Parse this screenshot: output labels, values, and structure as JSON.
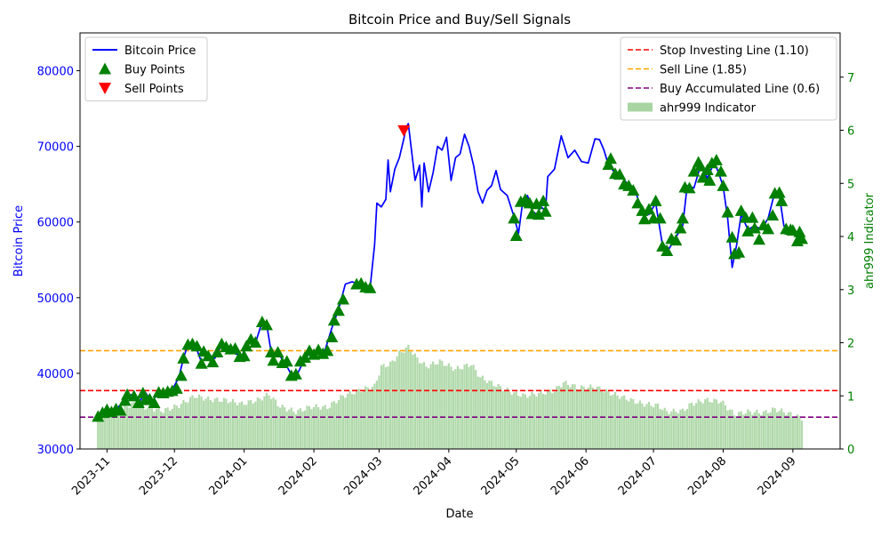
{
  "chart_data": {
    "type": "line",
    "title": "Bitcoin Price and Buy/Sell Signals",
    "xlabel": "Date",
    "ylabel_left": "Bitcoin Price",
    "ylabel_right": "ahr999 Indicator",
    "x_range": [
      "2023-10-20",
      "2024-09-22"
    ],
    "ylim_left": [
      30000,
      85000
    ],
    "ylim_right": [
      0,
      7.833
    ],
    "grid": false,
    "x_ticks": [
      "2023-11",
      "2023-12",
      "2024-01",
      "2024-02",
      "2024-03",
      "2024-04",
      "2024-05",
      "2024-06",
      "2024-07",
      "2024-08",
      "2024-09"
    ],
    "y_ticks_left": [
      "30000",
      "40000",
      "50000",
      "60000",
      "70000",
      "80000"
    ],
    "y_ticks_right": [
      "0",
      "1",
      "2",
      "3",
      "4",
      "5",
      "6",
      "7"
    ],
    "legend_left": [
      {
        "label": "Bitcoin Price",
        "kind": "line",
        "color": "#0000ff"
      },
      {
        "label": "Buy Points",
        "kind": "triangle-up",
        "color": "#008000"
      },
      {
        "label": "Sell Points",
        "kind": "triangle-down",
        "color": "#ff0000"
      }
    ],
    "legend_right": [
      {
        "label": "Stop Investing Line (1.10)",
        "kind": "dashed",
        "color": "#ff0000"
      },
      {
        "label": "Sell Line (1.85)",
        "kind": "dashed",
        "color": "#ffa500"
      },
      {
        "label": "Buy Accumulated Line (0.6)",
        "kind": "dashed",
        "color": "#800080"
      },
      {
        "label": "ahr999 Indicator",
        "kind": "bar",
        "color": "#a8d5a2"
      }
    ],
    "reference_lines": [
      {
        "name": "Stop Investing Line (1.10)",
        "value": 1.1,
        "color": "#ff0000"
      },
      {
        "name": "Sell Line (1.85)",
        "value": 1.85,
        "color": "#ffa500"
      },
      {
        "name": "Buy Accumulated Line (0.6)",
        "value": 0.6,
        "color": "#800080"
      }
    ],
    "price_series": {
      "name": "Bitcoin Price",
      "color": "#0000ff",
      "points": [
        [
          "2023-10-28",
          34300
        ],
        [
          "2023-11-01",
          35000
        ],
        [
          "2023-11-05",
          35200
        ],
        [
          "2023-11-09",
          36500
        ],
        [
          "2023-11-12",
          37200
        ],
        [
          "2023-11-15",
          36000
        ],
        [
          "2023-11-18",
          37500
        ],
        [
          "2023-11-21",
          36200
        ],
        [
          "2023-11-24",
          37600
        ],
        [
          "2023-11-27",
          37200
        ],
        [
          "2023-11-30",
          37800
        ],
        [
          "2023-12-03",
          39500
        ],
        [
          "2023-12-05",
          42000
        ],
        [
          "2023-12-07",
          43800
        ],
        [
          "2023-12-10",
          43900
        ],
        [
          "2023-12-13",
          41500
        ],
        [
          "2023-12-16",
          42500
        ],
        [
          "2023-12-19",
          42000
        ],
        [
          "2023-12-22",
          43800
        ],
        [
          "2023-12-25",
          43600
        ],
        [
          "2023-12-28",
          42600
        ],
        [
          "2023-12-31",
          42300
        ],
        [
          "2024-01-03",
          44500
        ],
        [
          "2024-01-06",
          44000
        ],
        [
          "2024-01-09",
          46800
        ],
        [
          "2024-01-11",
          46500
        ],
        [
          "2024-01-13",
          42800
        ],
        [
          "2024-01-16",
          42600
        ],
        [
          "2024-01-19",
          41500
        ],
        [
          "2024-01-22",
          39800
        ],
        [
          "2024-01-25",
          40100
        ],
        [
          "2024-01-28",
          42000
        ],
        [
          "2024-01-31",
          42800
        ],
        [
          "2024-02-03",
          43000
        ],
        [
          "2024-02-06",
          43100
        ],
        [
          "2024-02-09",
          46000
        ],
        [
          "2024-02-12",
          48500
        ],
        [
          "2024-02-15",
          51800
        ],
        [
          "2024-02-18",
          52100
        ],
        [
          "2024-02-21",
          51800
        ],
        [
          "2024-02-24",
          51500
        ],
        [
          "2024-02-26",
          51300
        ],
        [
          "2024-02-28",
          57000
        ],
        [
          "2024-02-29",
          62500
        ],
        [
          "2024-03-02",
          62000
        ],
        [
          "2024-03-04",
          63000
        ],
        [
          "2024-03-05",
          68200
        ],
        [
          "2024-03-06",
          64000
        ],
        [
          "2024-03-08",
          67000
        ],
        [
          "2024-03-10",
          68500
        ],
        [
          "2024-03-12",
          71000
        ],
        [
          "2024-03-13",
          72500
        ],
        [
          "2024-03-14",
          73000
        ],
        [
          "2024-03-16",
          68000
        ],
        [
          "2024-03-17",
          65500
        ],
        [
          "2024-03-19",
          67500
        ],
        [
          "2024-03-20",
          62000
        ],
        [
          "2024-03-21",
          67800
        ],
        [
          "2024-03-23",
          64000
        ],
        [
          "2024-03-25",
          66500
        ],
        [
          "2024-03-27",
          70000
        ],
        [
          "2024-03-29",
          69500
        ],
        [
          "2024-03-31",
          71200
        ],
        [
          "2024-04-02",
          65500
        ],
        [
          "2024-04-04",
          68500
        ],
        [
          "2024-04-06",
          69000
        ],
        [
          "2024-04-08",
          71600
        ],
        [
          "2024-04-10",
          70000
        ],
        [
          "2024-04-12",
          67500
        ],
        [
          "2024-04-14",
          64000
        ],
        [
          "2024-04-16",
          62500
        ],
        [
          "2024-04-18",
          64200
        ],
        [
          "2024-04-20",
          64800
        ],
        [
          "2024-04-22",
          66800
        ],
        [
          "2024-04-24",
          64300
        ],
        [
          "2024-04-27",
          63500
        ],
        [
          "2024-04-30",
          60700
        ],
        [
          "2024-05-02",
          58500
        ],
        [
          "2024-05-04",
          63000
        ],
        [
          "2024-05-06",
          63500
        ],
        [
          "2024-05-08",
          61500
        ],
        [
          "2024-05-10",
          61000
        ],
        [
          "2024-05-12",
          62000
        ],
        [
          "2024-05-14",
          61500
        ],
        [
          "2024-05-15",
          66000
        ],
        [
          "2024-05-18",
          67000
        ],
        [
          "2024-05-21",
          71400
        ],
        [
          "2024-05-24",
          68500
        ],
        [
          "2024-05-27",
          69500
        ],
        [
          "2024-05-30",
          68000
        ],
        [
          "2024-06-02",
          67800
        ],
        [
          "2024-06-05",
          71000
        ],
        [
          "2024-06-07",
          70900
        ],
        [
          "2024-06-09",
          69500
        ],
        [
          "2024-06-11",
          67500
        ],
        [
          "2024-06-14",
          66500
        ],
        [
          "2024-06-17",
          66000
        ],
        [
          "2024-06-20",
          64800
        ],
        [
          "2024-06-23",
          64000
        ],
        [
          "2024-06-26",
          61500
        ],
        [
          "2024-06-29",
          61000
        ],
        [
          "2024-07-02",
          62500
        ],
        [
          "2024-07-05",
          57000
        ],
        [
          "2024-07-08",
          56500
        ],
        [
          "2024-07-11",
          58000
        ],
        [
          "2024-07-14",
          59500
        ],
        [
          "2024-07-16",
          64800
        ],
        [
          "2024-07-19",
          64500
        ],
        [
          "2024-07-22",
          67500
        ],
        [
          "2024-07-25",
          65800
        ],
        [
          "2024-07-28",
          67900
        ],
        [
          "2024-07-30",
          66500
        ],
        [
          "2024-08-01",
          64700
        ],
        [
          "2024-08-03",
          60500
        ],
        [
          "2024-08-05",
          54000
        ],
        [
          "2024-08-07",
          57000
        ],
        [
          "2024-08-09",
          61000
        ],
        [
          "2024-08-12",
          59000
        ],
        [
          "2024-08-15",
          59500
        ],
        [
          "2024-08-18",
          59000
        ],
        [
          "2024-08-21",
          60500
        ],
        [
          "2024-08-24",
          64000
        ],
        [
          "2024-08-26",
          63500
        ],
        [
          "2024-08-28",
          59500
        ],
        [
          "2024-09-01",
          58800
        ],
        [
          "2024-09-03",
          58000
        ],
        [
          "2024-09-05",
          57800
        ]
      ]
    },
    "buy_points": [
      [
        "2023-10-28",
        34300
      ],
      [
        "2023-10-30",
        34800
      ],
      [
        "2023-11-01",
        35200
      ],
      [
        "2023-11-03",
        34900
      ],
      [
        "2023-11-05",
        35300
      ],
      [
        "2023-11-07",
        35100
      ],
      [
        "2023-11-09",
        36400
      ],
      [
        "2023-11-10",
        37200
      ],
      [
        "2023-11-13",
        37000
      ],
      [
        "2023-11-15",
        36100
      ],
      [
        "2023-11-17",
        37400
      ],
      [
        "2023-11-18",
        36500
      ],
      [
        "2023-11-20",
        36600
      ],
      [
        "2023-11-22",
        36100
      ],
      [
        "2023-11-24",
        37500
      ],
      [
        "2023-11-26",
        37400
      ],
      [
        "2023-11-28",
        37600
      ],
      [
        "2023-11-30",
        37700
      ],
      [
        "2023-12-02",
        38000
      ],
      [
        "2023-12-04",
        39700
      ],
      [
        "2023-12-05",
        42000
      ],
      [
        "2023-12-07",
        43800
      ],
      [
        "2023-12-09",
        43900
      ],
      [
        "2023-12-11",
        43600
      ],
      [
        "2023-12-13",
        41300
      ],
      [
        "2023-12-14",
        42900
      ],
      [
        "2023-12-16",
        42300
      ],
      [
        "2023-12-18",
        41500
      ],
      [
        "2023-12-20",
        42800
      ],
      [
        "2023-12-22",
        43900
      ],
      [
        "2023-12-24",
        43500
      ],
      [
        "2023-12-26",
        43200
      ],
      [
        "2023-12-28",
        43300
      ],
      [
        "2023-12-30",
        42200
      ],
      [
        "2024-01-01",
        42300
      ],
      [
        "2024-01-02",
        43600
      ],
      [
        "2024-01-04",
        44500
      ],
      [
        "2024-01-06",
        44100
      ],
      [
        "2024-01-09",
        46800
      ],
      [
        "2024-01-11",
        46400
      ],
      [
        "2024-01-13",
        42800
      ],
      [
        "2024-01-14",
        41700
      ],
      [
        "2024-01-16",
        42800
      ],
      [
        "2024-01-18",
        41400
      ],
      [
        "2024-01-20",
        41600
      ],
      [
        "2024-01-22",
        39700
      ],
      [
        "2024-01-24",
        39900
      ],
      [
        "2024-01-26",
        41600
      ],
      [
        "2024-01-28",
        42100
      ],
      [
        "2024-01-30",
        43000
      ],
      [
        "2024-02-01",
        42500
      ],
      [
        "2024-02-03",
        43100
      ],
      [
        "2024-02-05",
        42600
      ],
      [
        "2024-02-07",
        43000
      ],
      [
        "2024-02-09",
        44800
      ],
      [
        "2024-02-10",
        47000
      ],
      [
        "2024-02-12",
        48300
      ],
      [
        "2024-02-14",
        49800
      ],
      [
        "2024-02-20",
        51800
      ],
      [
        "2024-02-22",
        51900
      ],
      [
        "2024-02-24",
        51400
      ],
      [
        "2024-02-26",
        51300
      ],
      [
        "2024-04-30",
        60500
      ],
      [
        "2024-05-01",
        58200
      ],
      [
        "2024-05-03",
        62700
      ],
      [
        "2024-05-05",
        63000
      ],
      [
        "2024-05-07",
        62500
      ],
      [
        "2024-05-08",
        61100
      ],
      [
        "2024-05-10",
        62400
      ],
      [
        "2024-05-11",
        61000
      ],
      [
        "2024-05-13",
        62800
      ],
      [
        "2024-05-14",
        61400
      ],
      [
        "2024-06-11",
        67600
      ],
      [
        "2024-06-12",
        68400
      ],
      [
        "2024-06-14",
        66400
      ],
      [
        "2024-06-16",
        66300
      ],
      [
        "2024-06-18",
        65000
      ],
      [
        "2024-06-20",
        64800
      ],
      [
        "2024-06-22",
        64200
      ],
      [
        "2024-06-24",
        62500
      ],
      [
        "2024-06-26",
        61500
      ],
      [
        "2024-06-27",
        60400
      ],
      [
        "2024-06-29",
        61700
      ],
      [
        "2024-07-01",
        60500
      ],
      [
        "2024-07-02",
        62800
      ],
      [
        "2024-07-04",
        60500
      ],
      [
        "2024-07-05",
        56800
      ],
      [
        "2024-07-07",
        56200
      ],
      [
        "2024-07-09",
        57800
      ],
      [
        "2024-07-11",
        57600
      ],
      [
        "2024-07-13",
        59200
      ],
      [
        "2024-07-14",
        60500
      ],
      [
        "2024-07-15",
        64600
      ],
      [
        "2024-07-17",
        64500
      ],
      [
        "2024-07-19",
        66700
      ],
      [
        "2024-07-21",
        67900
      ],
      [
        "2024-07-22",
        67400
      ],
      [
        "2024-07-23",
        65900
      ],
      [
        "2024-07-25",
        66900
      ],
      [
        "2024-07-26",
        65500
      ],
      [
        "2024-07-27",
        67800
      ],
      [
        "2024-07-29",
        68200
      ],
      [
        "2024-07-31",
        66700
      ],
      [
        "2024-08-01",
        64800
      ],
      [
        "2024-08-03",
        61300
      ],
      [
        "2024-08-05",
        58000
      ],
      [
        "2024-08-06",
        55800
      ],
      [
        "2024-08-08",
        56000
      ],
      [
        "2024-08-09",
        61500
      ],
      [
        "2024-08-11",
        60600
      ],
      [
        "2024-08-12",
        58800
      ],
      [
        "2024-08-14",
        60600
      ],
      [
        "2024-08-15",
        59200
      ],
      [
        "2024-08-17",
        57700
      ],
      [
        "2024-08-19",
        59600
      ],
      [
        "2024-08-21",
        59100
      ],
      [
        "2024-08-23",
        60900
      ],
      [
        "2024-08-24",
        63800
      ],
      [
        "2024-08-26",
        63900
      ],
      [
        "2024-08-27",
        62800
      ],
      [
        "2024-08-29",
        59100
      ],
      [
        "2024-08-31",
        59000
      ],
      [
        "2024-09-01",
        58900
      ],
      [
        "2024-09-03",
        57500
      ],
      [
        "2024-09-04",
        58700
      ],
      [
        "2024-09-05",
        57800
      ]
    ],
    "sell_points": [
      [
        "2024-03-12",
        72100
      ]
    ],
    "ahr999_series": {
      "name": "ahr999 Indicator",
      "color": "#a8d5a2",
      "points": [
        [
          "2023-10-28",
          0.62
        ],
        [
          "2023-11-05",
          0.68
        ],
        [
          "2023-11-12",
          0.85
        ],
        [
          "2023-11-19",
          0.78
        ],
        [
          "2023-11-26",
          0.72
        ],
        [
          "2023-12-03",
          0.82
        ],
        [
          "2023-12-10",
          1.0
        ],
        [
          "2023-12-17",
          0.93
        ],
        [
          "2023-12-24",
          0.92
        ],
        [
          "2023-12-31",
          0.85
        ],
        [
          "2024-01-07",
          0.92
        ],
        [
          "2024-01-12",
          1.03
        ],
        [
          "2024-01-17",
          0.8
        ],
        [
          "2024-01-24",
          0.7
        ],
        [
          "2024-01-31",
          0.8
        ],
        [
          "2024-02-07",
          0.78
        ],
        [
          "2024-02-14",
          1.0
        ],
        [
          "2024-02-21",
          1.1
        ],
        [
          "2024-02-28",
          1.18
        ],
        [
          "2024-03-02",
          1.55
        ],
        [
          "2024-03-06",
          1.6
        ],
        [
          "2024-03-10",
          1.8
        ],
        [
          "2024-03-14",
          1.92
        ],
        [
          "2024-03-18",
          1.7
        ],
        [
          "2024-03-22",
          1.55
        ],
        [
          "2024-03-28",
          1.65
        ],
        [
          "2024-04-04",
          1.5
        ],
        [
          "2024-04-11",
          1.6
        ],
        [
          "2024-04-15",
          1.35
        ],
        [
          "2024-04-22",
          1.2
        ],
        [
          "2024-04-30",
          1.05
        ],
        [
          "2024-05-05",
          1.0
        ],
        [
          "2024-05-12",
          1.05
        ],
        [
          "2024-05-18",
          1.1
        ],
        [
          "2024-05-22",
          1.25
        ],
        [
          "2024-05-29",
          1.15
        ],
        [
          "2024-06-05",
          1.17
        ],
        [
          "2024-06-12",
          1.05
        ],
        [
          "2024-06-19",
          0.95
        ],
        [
          "2024-06-26",
          0.85
        ],
        [
          "2024-07-03",
          0.82
        ],
        [
          "2024-07-07",
          0.7
        ],
        [
          "2024-07-14",
          0.72
        ],
        [
          "2024-07-18",
          0.85
        ],
        [
          "2024-07-24",
          0.92
        ],
        [
          "2024-07-31",
          0.9
        ],
        [
          "2024-08-06",
          0.65
        ],
        [
          "2024-08-12",
          0.7
        ],
        [
          "2024-08-19",
          0.68
        ],
        [
          "2024-08-24",
          0.75
        ],
        [
          "2024-08-28",
          0.7
        ],
        [
          "2024-09-05",
          0.58
        ]
      ]
    }
  }
}
